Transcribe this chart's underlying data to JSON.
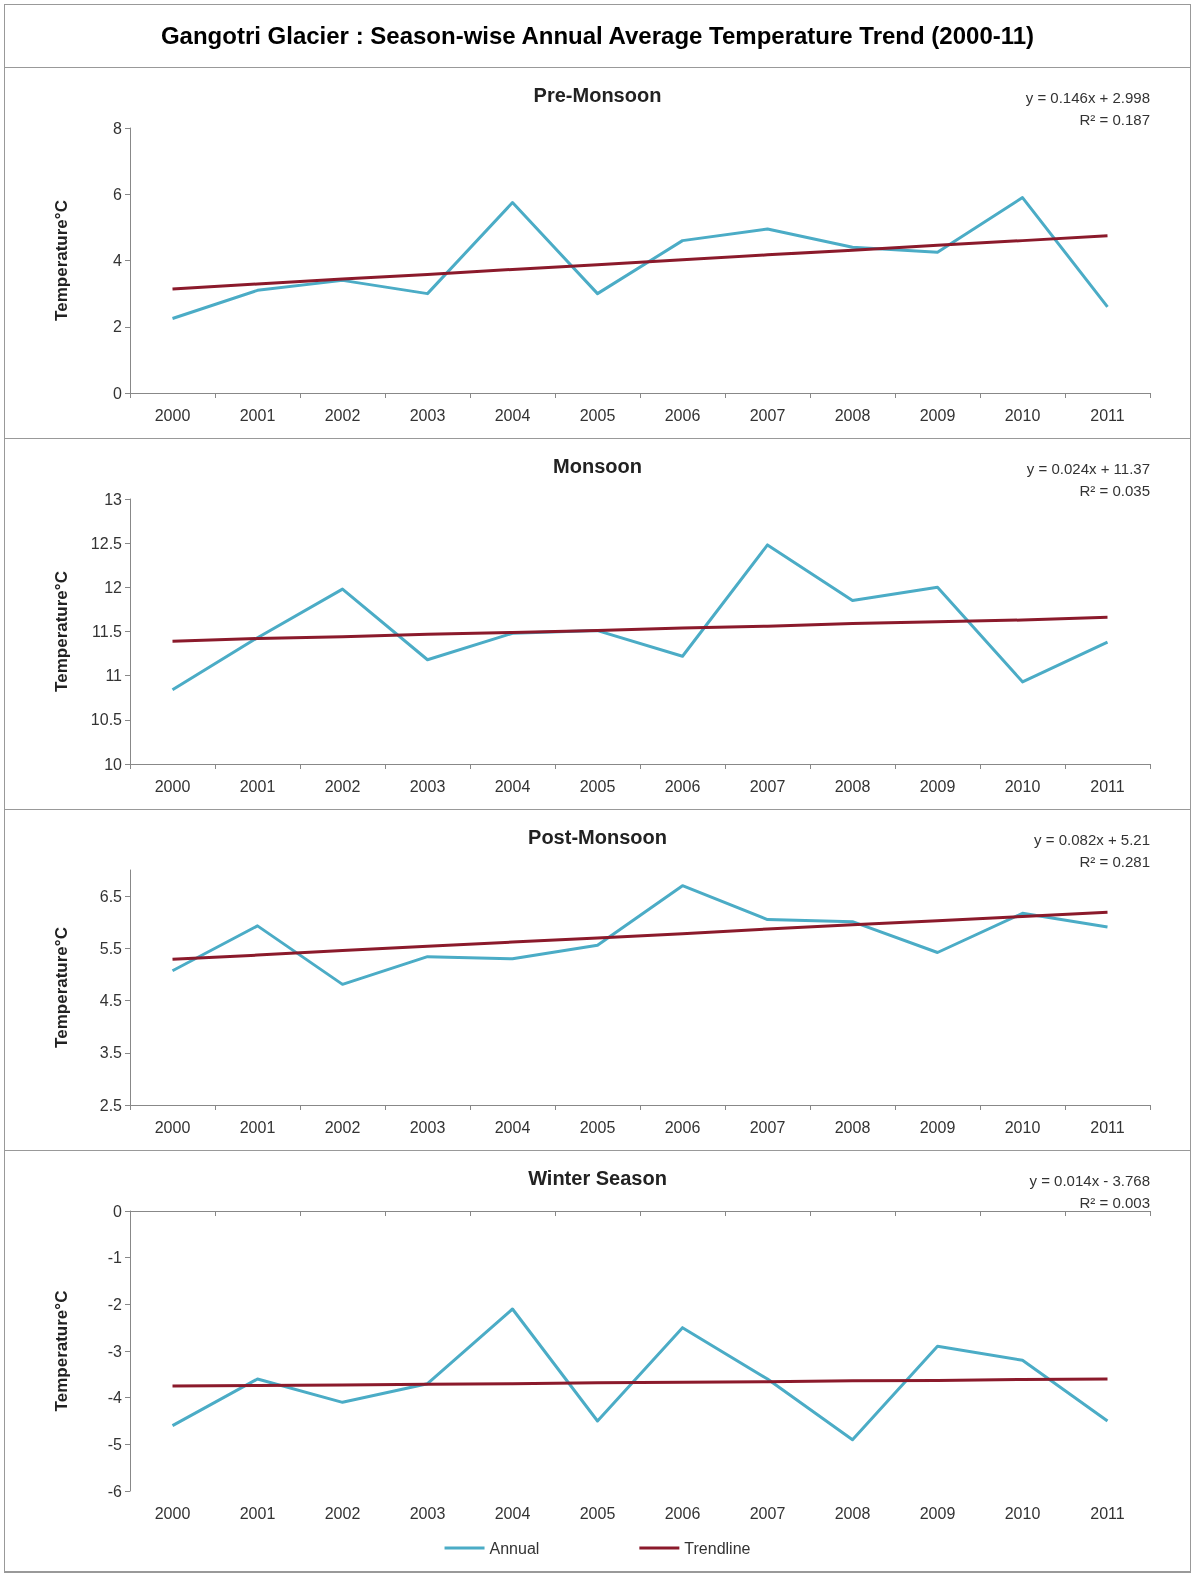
{
  "chart_data": [
    {
      "type": "line",
      "title": "Gangotri Glacier : Season-wise Annual Average Temperature Trend (2000-11)",
      "subtitle": "Pre-Monsoon",
      "ylabel": "Temperature°C",
      "categories": [
        "2000",
        "2001",
        "2002",
        "2003",
        "2004",
        "2005",
        "2006",
        "2007",
        "2008",
        "2009",
        "2010",
        "2011"
      ],
      "ylim": [
        0,
        8
      ],
      "yticks": [
        0,
        2,
        4,
        6,
        8
      ],
      "marker": "none",
      "annotations": [
        "y = 0.146x + 2.998",
        "R² = 0.187"
      ],
      "series": [
        {
          "type": "line",
          "color": "#4bacc6",
          "values": [
            2.25,
            3.1,
            3.4,
            3.0,
            5.75,
            3.0,
            4.6,
            4.95,
            4.4,
            4.25,
            5.9,
            2.6
          ]
        },
        {
          "type": "line",
          "color": "#8b1a2b",
          "values": [
            3.14,
            3.29,
            3.44,
            3.58,
            3.73,
            3.87,
            4.02,
            4.17,
            4.31,
            4.46,
            4.6,
            4.75
          ]
        }
      ]
    },
    {
      "type": "line",
      "title": "Monsoon",
      "ylabel": "Temperature°C",
      "categories": [
        "2000",
        "2001",
        "2002",
        "2003",
        "2004",
        "2005",
        "2006",
        "2007",
        "2008",
        "2009",
        "2010",
        "2011"
      ],
      "ylim": [
        10,
        13
      ],
      "yticks": [
        10,
        10.5,
        11,
        11.5,
        12,
        12.5,
        13
      ],
      "marker": "none",
      "annotations": [
        "y = 0.024x + 11.37",
        "R² = 0.035"
      ],
      "series": [
        {
          "type": "line",
          "color": "#4bacc6",
          "values": [
            10.84,
            11.43,
            11.98,
            11.18,
            11.48,
            11.51,
            11.22,
            12.48,
            11.85,
            12.0,
            10.93,
            11.38
          ]
        },
        {
          "type": "line",
          "color": "#8b1a2b",
          "values": [
            11.39,
            11.42,
            11.44,
            11.47,
            11.49,
            11.51,
            11.54,
            11.56,
            11.59,
            11.61,
            11.63,
            11.66
          ]
        }
      ]
    },
    {
      "type": "line",
      "title": "Post-Monsoon",
      "ylabel": "Temperature°C",
      "categories": [
        "2000",
        "2001",
        "2002",
        "2003",
        "2004",
        "2005",
        "2006",
        "2007",
        "2008",
        "2009",
        "2010",
        "2011"
      ],
      "ylim": [
        2.5,
        7
      ],
      "yticks": [
        2.5,
        3.5,
        4.5,
        5.5,
        6.5
      ],
      "marker": "none",
      "annotations": [
        "y = 0.082x + 5.21",
        "R² = 0.281"
      ],
      "series": [
        {
          "type": "line",
          "color": "#4bacc6",
          "values": [
            5.07,
            5.93,
            4.81,
            5.34,
            5.3,
            5.56,
            6.7,
            6.05,
            6.01,
            5.42,
            6.17,
            5.91
          ]
        },
        {
          "type": "line",
          "color": "#8b1a2b",
          "values": [
            5.29,
            5.37,
            5.46,
            5.54,
            5.62,
            5.7,
            5.78,
            5.87,
            5.95,
            6.03,
            6.11,
            6.19
          ]
        }
      ]
    },
    {
      "type": "line",
      "title": "Winter Season",
      "ylabel": "Temperature°C",
      "categories": [
        "2000",
        "2001",
        "2002",
        "2003",
        "2004",
        "2005",
        "2006",
        "2007",
        "2008",
        "2009",
        "2010",
        "2011"
      ],
      "ylim": [
        -6,
        0
      ],
      "yticks": [
        -6,
        -5,
        -4,
        -3,
        -2,
        -1,
        0
      ],
      "marker": "none",
      "legend": "bottom",
      "annotations": [
        "y = 0.014x - 3.768",
        "R² = 0.003"
      ],
      "series": [
        {
          "type": "line",
          "name": "Annual",
          "color": "#4bacc6",
          "values": [
            -4.6,
            -3.6,
            -4.1,
            -3.7,
            -2.1,
            -4.5,
            -2.5,
            -3.6,
            -4.9,
            -2.9,
            -3.2,
            -4.5
          ]
        },
        {
          "type": "line",
          "name": "Trendline",
          "color": "#8b1a2b",
          "values": [
            -3.75,
            -3.74,
            -3.73,
            -3.71,
            -3.7,
            -3.68,
            -3.67,
            -3.66,
            -3.64,
            -3.63,
            -3.61,
            -3.6
          ]
        }
      ]
    }
  ]
}
